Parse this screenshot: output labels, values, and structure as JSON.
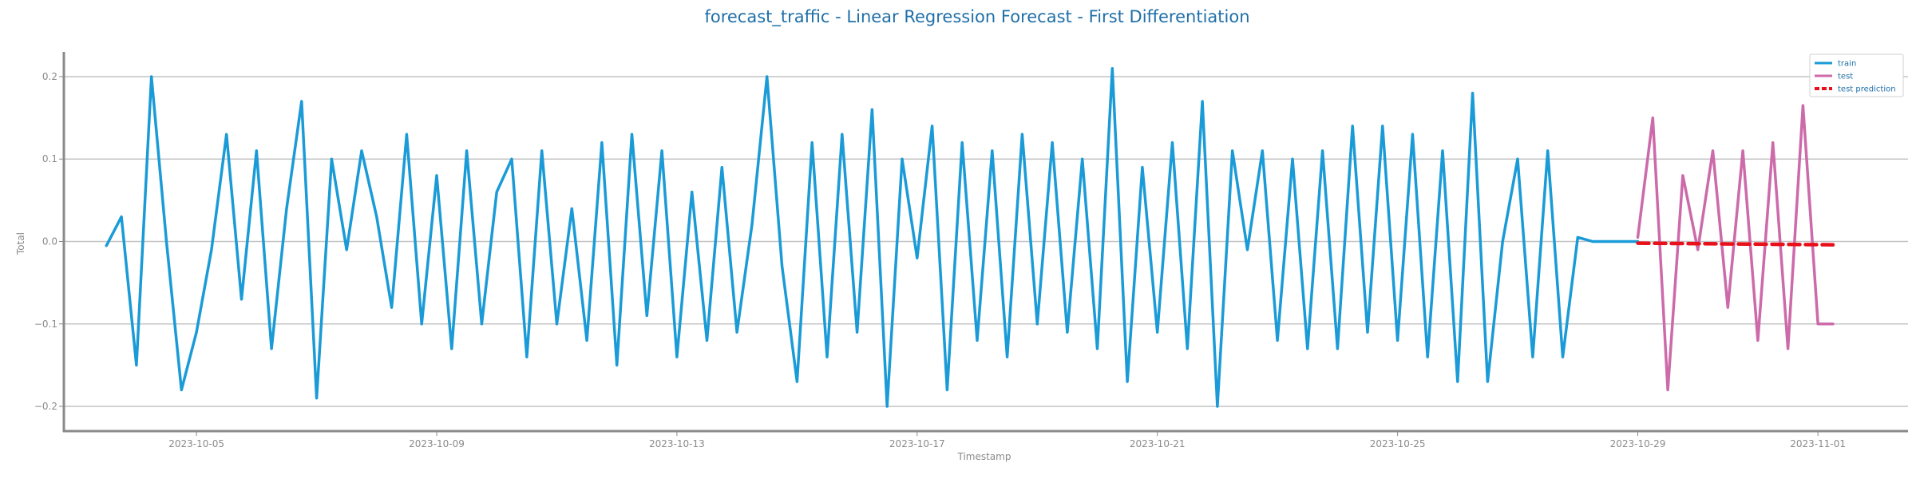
{
  "chart_data": {
    "type": "line",
    "title": "forecast_traffic - Linear Regression Forecast - First Differentiation",
    "xlabel": "Timestamp",
    "ylabel": "Total",
    "ylim": [
      -0.23,
      0.23
    ],
    "xlim": [
      "2023-10-02T19:00",
      "2023-11-02T12:00"
    ],
    "grid": "horizontal",
    "legend_position": "top-right",
    "x_ticks": [
      "2023-10-05",
      "2023-10-09",
      "2023-10-13",
      "2023-10-17",
      "2023-10-21",
      "2023-10-25",
      "2023-10-29",
      "2023-11-01"
    ],
    "y_ticks": [
      "0.2",
      "0.1",
      "0.0",
      "−0.1",
      "−0.2"
    ],
    "y_tick_values": [
      0.2,
      0.1,
      0.0,
      -0.1,
      -0.2
    ],
    "series": [
      {
        "name": "train",
        "color": "#1a9bd7",
        "style": "solid",
        "x": [
          "2023-10-03T12:00",
          "2023-10-03T18:00",
          "2023-10-04T00:00",
          "2023-10-04T06:00",
          "2023-10-04T12:00",
          "2023-10-04T18:00",
          "2023-10-05T00:00",
          "2023-10-05T06:00",
          "2023-10-05T12:00",
          "2023-10-05T18:00",
          "2023-10-06T00:00",
          "2023-10-06T06:00",
          "2023-10-06T12:00",
          "2023-10-06T18:00",
          "2023-10-07T00:00",
          "2023-10-07T06:00",
          "2023-10-07T12:00",
          "2023-10-07T18:00",
          "2023-10-08T00:00",
          "2023-10-08T06:00",
          "2023-10-08T12:00",
          "2023-10-08T18:00",
          "2023-10-09T00:00",
          "2023-10-09T06:00",
          "2023-10-09T12:00",
          "2023-10-09T18:00",
          "2023-10-10T00:00",
          "2023-10-10T06:00",
          "2023-10-10T12:00",
          "2023-10-10T18:00",
          "2023-10-11T00:00",
          "2023-10-11T06:00",
          "2023-10-11T12:00",
          "2023-10-11T18:00",
          "2023-10-12T00:00",
          "2023-10-12T06:00",
          "2023-10-12T12:00",
          "2023-10-12T18:00",
          "2023-10-13T00:00",
          "2023-10-13T06:00",
          "2023-10-13T12:00",
          "2023-10-13T18:00",
          "2023-10-14T00:00",
          "2023-10-14T06:00",
          "2023-10-14T12:00",
          "2023-10-14T18:00",
          "2023-10-15T00:00",
          "2023-10-15T06:00",
          "2023-10-15T12:00",
          "2023-10-15T18:00",
          "2023-10-16T00:00",
          "2023-10-16T06:00",
          "2023-10-16T12:00",
          "2023-10-16T18:00",
          "2023-10-17T00:00",
          "2023-10-17T06:00",
          "2023-10-17T12:00",
          "2023-10-17T18:00",
          "2023-10-18T00:00",
          "2023-10-18T06:00",
          "2023-10-18T12:00",
          "2023-10-18T18:00",
          "2023-10-19T00:00",
          "2023-10-19T06:00",
          "2023-10-19T12:00",
          "2023-10-19T18:00",
          "2023-10-20T00:00",
          "2023-10-20T06:00",
          "2023-10-20T12:00",
          "2023-10-20T18:00",
          "2023-10-21T00:00",
          "2023-10-21T06:00",
          "2023-10-21T12:00",
          "2023-10-21T18:00",
          "2023-10-22T00:00",
          "2023-10-22T06:00",
          "2023-10-22T12:00",
          "2023-10-22T18:00",
          "2023-10-23T00:00",
          "2023-10-23T06:00",
          "2023-10-23T12:00",
          "2023-10-23T18:00",
          "2023-10-24T00:00",
          "2023-10-24T06:00",
          "2023-10-24T12:00",
          "2023-10-24T18:00",
          "2023-10-25T00:00",
          "2023-10-25T06:00",
          "2023-10-25T12:00",
          "2023-10-25T18:00",
          "2023-10-26T00:00",
          "2023-10-26T06:00",
          "2023-10-26T12:00",
          "2023-10-26T18:00",
          "2023-10-27T00:00",
          "2023-10-27T06:00",
          "2023-10-27T12:00",
          "2023-10-27T18:00",
          "2023-10-28T00:00",
          "2023-10-28T06:00",
          "2023-10-28T12:00",
          "2023-10-28T18:00",
          "2023-10-29T00:00"
        ],
        "y": [
          -0.005,
          0.03,
          -0.15,
          0.2,
          0.0,
          -0.18,
          -0.11,
          -0.01,
          0.13,
          -0.07,
          0.11,
          -0.13,
          0.04,
          0.17,
          -0.19,
          0.1,
          -0.01,
          0.11,
          0.03,
          -0.08,
          0.13,
          -0.1,
          0.08,
          -0.13,
          0.11,
          -0.1,
          0.06,
          0.1,
          -0.14,
          0.11,
          -0.1,
          0.04,
          -0.12,
          0.12,
          -0.15,
          0.13,
          -0.09,
          0.11,
          -0.14,
          0.06,
          -0.12,
          0.09,
          -0.11,
          0.02,
          0.2,
          -0.03,
          -0.17,
          0.12,
          -0.14,
          0.13,
          -0.11,
          0.16,
          -0.2,
          0.1,
          -0.02,
          0.14,
          -0.18,
          0.12,
          -0.12,
          0.11,
          -0.14,
          0.13,
          -0.1,
          0.12,
          -0.11,
          0.1,
          -0.13,
          0.21,
          -0.17,
          0.09,
          -0.11,
          0.12,
          -0.13,
          0.17,
          -0.2,
          0.11,
          -0.01,
          0.11,
          -0.12,
          0.1,
          -0.13,
          0.11,
          -0.13,
          0.14,
          -0.11,
          0.14,
          -0.12,
          0.13,
          -0.14,
          0.11,
          -0.17,
          0.18,
          -0.17,
          0.0,
          0.1,
          -0.14,
          0.11,
          -0.14,
          0.005,
          0.0,
          0.0,
          0.0,
          0.0
        ]
      },
      {
        "name": "test",
        "color": "#cc6aaa",
        "style": "solid",
        "x": [
          "2023-10-29T00:00",
          "2023-10-29T06:00",
          "2023-10-29T12:00",
          "2023-10-29T18:00",
          "2023-10-30T00:00",
          "2023-10-30T06:00",
          "2023-10-30T12:00",
          "2023-10-30T18:00",
          "2023-10-31T00:00",
          "2023-10-31T06:00",
          "2023-10-31T12:00",
          "2023-10-31T18:00",
          "2023-11-01T00:00",
          "2023-11-01T06:00"
        ],
        "y": [
          0.005,
          0.15,
          -0.18,
          0.08,
          -0.01,
          0.11,
          -0.08,
          0.11,
          -0.12,
          0.12,
          -0.13,
          0.165,
          -0.1,
          -0.1
        ]
      },
      {
        "name": "test prediction",
        "color": "#e8101a",
        "style": "dashed",
        "x": [
          "2023-10-29T00:00",
          "2023-11-01T06:00"
        ],
        "y": [
          -0.002,
          -0.004
        ]
      }
    ]
  }
}
